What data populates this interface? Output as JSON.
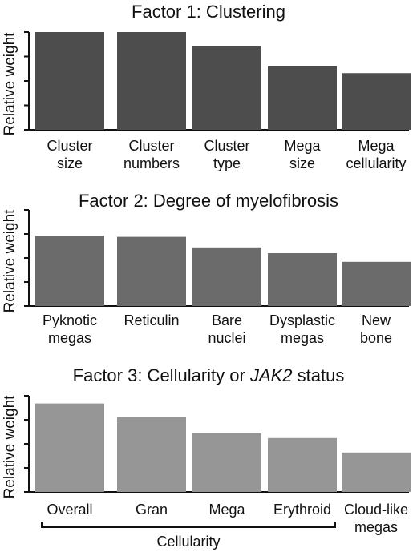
{
  "chart_data": [
    {
      "type": "bar",
      "title": "Factor 1: Clustering",
      "ylabel": "Relative weight",
      "categories": [
        [
          "Cluster",
          "size"
        ],
        [
          "Cluster",
          "numbers"
        ],
        [
          "Cluster",
          "type"
        ],
        [
          "Mega",
          "size"
        ],
        [
          "Mega",
          "cellularity"
        ]
      ],
      "values": [
        1.0,
        1.0,
        0.86,
        0.65,
        0.58
      ],
      "ylim": [
        0,
        1.0
      ],
      "yticks": 5,
      "bar_color": "#4d4d4d"
    },
    {
      "type": "bar",
      "title": "Factor 2: Degree of myelofibrosis",
      "ylabel": "Relative weight",
      "categories": [
        [
          "Pyknotic",
          "megas"
        ],
        [
          "Reticulin"
        ],
        [
          "Bare",
          "nuclei"
        ],
        [
          "Dysplastic",
          "megas"
        ],
        [
          "New",
          "bone"
        ]
      ],
      "values": [
        0.73,
        0.72,
        0.61,
        0.55,
        0.46
      ],
      "ylim": [
        0,
        1.0
      ],
      "yticks": 5,
      "bar_color": "#6b6b6b"
    },
    {
      "type": "bar",
      "title_parts": [
        "Factor 3: Cellularity or ",
        "JAK2",
        " status"
      ],
      "ylabel": "Relative weight",
      "categories": [
        [
          "Overall"
        ],
        [
          "Gran"
        ],
        [
          "Mega"
        ],
        [
          "Erythroid"
        ],
        [
          "Cloud-like",
          "megas"
        ]
      ],
      "values": [
        0.92,
        0.78,
        0.61,
        0.56,
        0.41
      ],
      "ylim": [
        0,
        1.0
      ],
      "yticks": 5,
      "bar_color": "#969696",
      "group_label": "Cellularity"
    }
  ]
}
